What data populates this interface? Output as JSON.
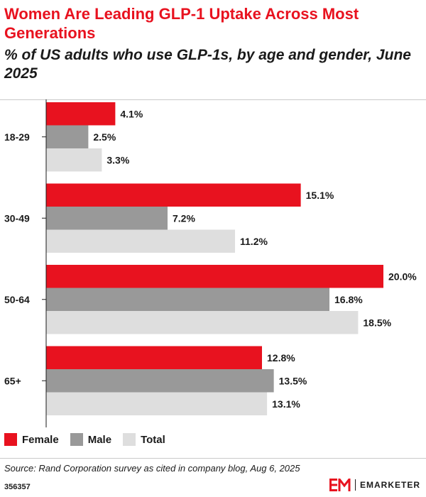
{
  "header": {
    "title": "Women Are Leading GLP-1 Uptake Across Most Generations",
    "subtitle": "% of US adults who use GLP-1s, by age and gender, June 2025"
  },
  "chart_data": {
    "type": "bar",
    "orientation": "horizontal",
    "categories": [
      "18-29",
      "30-49",
      "50-64",
      "65+"
    ],
    "series": [
      {
        "name": "Female",
        "color": "#e8121f",
        "values": [
          4.1,
          15.1,
          20.0,
          12.8
        ],
        "labels": [
          "4.1%",
          "15.1%",
          "20.0%",
          "12.8%"
        ]
      },
      {
        "name": "Male",
        "color": "#999999",
        "values": [
          2.5,
          7.2,
          16.8,
          13.5
        ],
        "labels": [
          "2.5%",
          "7.2%",
          "16.8%",
          "13.5%"
        ]
      },
      {
        "name": "Total",
        "color": "#dedede",
        "values": [
          3.3,
          11.2,
          18.5,
          13.1
        ],
        "labels": [
          "3.3%",
          "11.2%",
          "18.5%",
          "13.1%"
        ]
      }
    ],
    "xlim": [
      0,
      20
    ],
    "grid": false,
    "legend_position": "bottom-left",
    "data_labels": true
  },
  "legend": {
    "items": [
      {
        "label": "Female",
        "color": "#e8121f"
      },
      {
        "label": "Male",
        "color": "#999999"
      },
      {
        "label": "Total",
        "color": "#dedede"
      }
    ]
  },
  "footer": {
    "source": "Source: Rand Corporation survey as cited in company blog, Aug 6, 2025",
    "chart_id": "356357",
    "brand_initials": "EM",
    "brand_name": "EMARKETER"
  },
  "colors": {
    "accent": "#e8121f",
    "male": "#999999",
    "total": "#dedede",
    "axis": "#1a1a1a",
    "rule": "#c9c9c9"
  }
}
